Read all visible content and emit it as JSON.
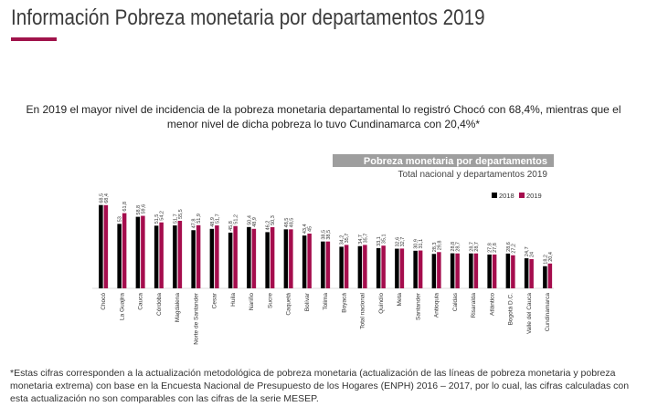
{
  "header": {
    "title": "Información Pobreza monetaria por departamentos 2019"
  },
  "lead_text": "En 2019 el mayor nivel de incidencia de la pobreza monetaria departamental lo registró Chocó con 68,4%, mientras que el menor nivel de dicha pobreza lo tuvo Cundinamarca con 20,4%*",
  "footnote": "*Estas cifras corresponden a la actualización metodológica de pobreza monetaria (actualización de las líneas de pobreza monetaria y pobreza monetaria extrema) con base en la Encuesta Nacional de Presupuesto de los Hogares (ENPH) 2016 – 2017, por lo cual, las cifras calculadas con esta actualización no son comparables con las cifras de la serie MESEP.",
  "colors": {
    "series_2018": "#000000",
    "series_2019": "#a50d4d",
    "accent": "#a0134b",
    "chart_title_bg": "#9e9e9e"
  },
  "chart_data": {
    "type": "bar",
    "title": "Pobreza monetaria por departamentos",
    "subtitle": "Total nacional y departamentos 2019",
    "legend_position": "top-right",
    "grid": false,
    "ylim": [
      0,
      75
    ],
    "categories": [
      "Chocó",
      "La Guajira",
      "Cauca",
      "Córdoba",
      "Magdalena",
      "Norte de Santander",
      "Cesar",
      "Huila",
      "Nariño",
      "Sucre",
      "Caquetá",
      "Bolívar",
      "Tolima",
      "Boyacá",
      "Total nacional",
      "Quindío",
      "Meta",
      "Santander",
      "Antioquia",
      "Caldas",
      "Risaralda",
      "Atlántico",
      "Bogotá D.C.",
      "Valle del Cauca",
      "Cundinamarca"
    ],
    "series": [
      {
        "name": "2018",
        "labels": [
          "68,5",
          "53",
          "58,8",
          "51,5",
          "51,7",
          "47,8",
          "48,9",
          "45,8",
          "50,4",
          "46,2",
          "48,5",
          "43,4",
          "38,5",
          "34,2",
          "34,7",
          "33,1",
          "32,6",
          "30,9",
          "28,3",
          "28,8",
          "28,7",
          "27,8",
          "28,6",
          "24,7",
          "18,2"
        ],
        "values": [
          68.5,
          53.0,
          58.8,
          51.5,
          51.7,
          47.8,
          48.9,
          45.8,
          50.4,
          46.2,
          48.5,
          43.4,
          38.5,
          34.2,
          34.7,
          33.1,
          32.6,
          30.9,
          28.3,
          28.8,
          28.7,
          27.8,
          28.6,
          24.7,
          18.2
        ]
      },
      {
        "name": "2019",
        "labels": [
          "68,4",
          "61,8",
          "59,6",
          "54,2",
          "55,5",
          "51,9",
          "51,7",
          "51,2",
          "48,9",
          "50,3",
          "48,5",
          "45",
          "38,5",
          "35,7",
          "35,7",
          "35,1",
          "32,7",
          "31,1",
          "29,8",
          "28,7",
          "28,7",
          "27,8",
          "27,2",
          "24",
          "20,4"
        ],
        "values": [
          68.4,
          61.8,
          59.6,
          54.2,
          55.5,
          51.9,
          51.7,
          51.2,
          48.9,
          50.3,
          48.5,
          45.0,
          38.5,
          35.7,
          35.7,
          35.1,
          32.7,
          31.1,
          29.8,
          28.7,
          28.7,
          27.8,
          27.2,
          24.0,
          20.4
        ]
      }
    ]
  }
}
